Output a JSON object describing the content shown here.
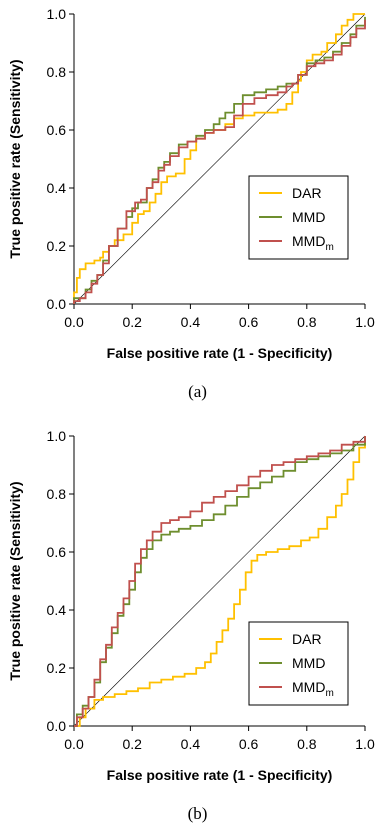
{
  "chart_data": [
    {
      "type": "line",
      "caption": "(a)",
      "xlabel": "False positive rate (1 - Specificity)",
      "ylabel": "True positive rate (Sensitivity)",
      "xlim": [
        0,
        1
      ],
      "ylim": [
        0,
        1
      ],
      "x_ticks": [
        "0.0",
        "0.2",
        "0.4",
        "0.6",
        "0.8",
        "1.0"
      ],
      "y_ticks": [
        "0.0",
        "0.2",
        "0.4",
        "0.6",
        "0.8",
        "1.0"
      ],
      "grid": false,
      "legend_position": "lower-right",
      "diagonal_reference": true,
      "series": [
        {
          "name": "DAR",
          "label_main": "DAR",
          "label_sub": "",
          "color": "#FFC000",
          "points": [
            [
              0,
              0
            ],
            [
              0,
              0.04
            ],
            [
              0.01,
              0.09
            ],
            [
              0.02,
              0.12
            ],
            [
              0.04,
              0.14
            ],
            [
              0.07,
              0.15
            ],
            [
              0.09,
              0.16
            ],
            [
              0.1,
              0.18
            ],
            [
              0.12,
              0.2
            ],
            [
              0.14,
              0.22
            ],
            [
              0.17,
              0.24
            ],
            [
              0.2,
              0.28
            ],
            [
              0.22,
              0.31
            ],
            [
              0.24,
              0.32
            ],
            [
              0.26,
              0.35
            ],
            [
              0.28,
              0.38
            ],
            [
              0.3,
              0.42
            ],
            [
              0.32,
              0.44
            ],
            [
              0.35,
              0.45
            ],
            [
              0.38,
              0.5
            ],
            [
              0.4,
              0.53
            ],
            [
              0.42,
              0.57
            ],
            [
              0.45,
              0.59
            ],
            [
              0.48,
              0.6
            ],
            [
              0.52,
              0.62
            ],
            [
              0.55,
              0.64
            ],
            [
              0.58,
              0.65
            ],
            [
              0.62,
              0.66
            ],
            [
              0.66,
              0.66
            ],
            [
              0.7,
              0.67
            ],
            [
              0.73,
              0.69
            ],
            [
              0.75,
              0.73
            ],
            [
              0.77,
              0.77
            ],
            [
              0.78,
              0.8
            ],
            [
              0.8,
              0.84
            ],
            [
              0.82,
              0.86
            ],
            [
              0.85,
              0.87
            ],
            [
              0.87,
              0.9
            ],
            [
              0.9,
              0.93
            ],
            [
              0.92,
              0.96
            ],
            [
              0.94,
              0.98
            ],
            [
              0.96,
              1.0
            ],
            [
              1,
              1.0
            ]
          ]
        },
        {
          "name": "MMD",
          "label_main": "MMD",
          "label_sub": "",
          "color": "#6E8E2E",
          "points": [
            [
              0,
              0
            ],
            [
              0,
              0.02
            ],
            [
              0.02,
              0.02
            ],
            [
              0.04,
              0.05
            ],
            [
              0.06,
              0.08
            ],
            [
              0.08,
              0.1
            ],
            [
              0.1,
              0.15
            ],
            [
              0.12,
              0.2
            ],
            [
              0.15,
              0.26
            ],
            [
              0.18,
              0.3
            ],
            [
              0.2,
              0.33
            ],
            [
              0.22,
              0.35
            ],
            [
              0.25,
              0.4
            ],
            [
              0.27,
              0.43
            ],
            [
              0.29,
              0.47
            ],
            [
              0.31,
              0.49
            ],
            [
              0.33,
              0.52
            ],
            [
              0.36,
              0.55
            ],
            [
              0.39,
              0.56
            ],
            [
              0.42,
              0.58
            ],
            [
              0.45,
              0.6
            ],
            [
              0.48,
              0.62
            ],
            [
              0.5,
              0.64
            ],
            [
              0.52,
              0.66
            ],
            [
              0.55,
              0.69
            ],
            [
              0.58,
              0.72
            ],
            [
              0.62,
              0.73
            ],
            [
              0.66,
              0.74
            ],
            [
              0.7,
              0.75
            ],
            [
              0.73,
              0.76
            ],
            [
              0.75,
              0.76
            ],
            [
              0.77,
              0.79
            ],
            [
              0.8,
              0.83
            ],
            [
              0.83,
              0.84
            ],
            [
              0.86,
              0.85
            ],
            [
              0.89,
              0.87
            ],
            [
              0.92,
              0.9
            ],
            [
              0.95,
              0.93
            ],
            [
              0.97,
              0.96
            ],
            [
              1,
              0.99
            ]
          ]
        },
        {
          "name": "MMDm",
          "label_main": "MMD",
          "label_sub": "m",
          "color": "#C0504D",
          "points": [
            [
              0,
              0
            ],
            [
              0,
              0.01
            ],
            [
              0.02,
              0.02
            ],
            [
              0.04,
              0.04
            ],
            [
              0.06,
              0.07
            ],
            [
              0.08,
              0.1
            ],
            [
              0.1,
              0.14
            ],
            [
              0.12,
              0.2
            ],
            [
              0.15,
              0.26
            ],
            [
              0.18,
              0.32
            ],
            [
              0.21,
              0.35
            ],
            [
              0.23,
              0.36
            ],
            [
              0.25,
              0.4
            ],
            [
              0.27,
              0.42
            ],
            [
              0.29,
              0.46
            ],
            [
              0.31,
              0.48
            ],
            [
              0.33,
              0.51
            ],
            [
              0.36,
              0.54
            ],
            [
              0.39,
              0.56
            ],
            [
              0.42,
              0.57
            ],
            [
              0.45,
              0.59
            ],
            [
              0.48,
              0.6
            ],
            [
              0.52,
              0.61
            ],
            [
              0.55,
              0.65
            ],
            [
              0.58,
              0.69
            ],
            [
              0.62,
              0.71
            ],
            [
              0.66,
              0.72
            ],
            [
              0.7,
              0.73
            ],
            [
              0.73,
              0.75
            ],
            [
              0.75,
              0.76
            ],
            [
              0.77,
              0.79
            ],
            [
              0.8,
              0.82
            ],
            [
              0.83,
              0.83
            ],
            [
              0.86,
              0.84
            ],
            [
              0.89,
              0.86
            ],
            [
              0.92,
              0.89
            ],
            [
              0.95,
              0.92
            ],
            [
              0.97,
              0.95
            ],
            [
              1,
              0.98
            ]
          ]
        }
      ]
    },
    {
      "type": "line",
      "caption": "(b)",
      "xlabel": "False positive rate (1 - Specificity)",
      "ylabel": "True positive rate (Sensitivity)",
      "xlim": [
        0,
        1
      ],
      "ylim": [
        0,
        1
      ],
      "x_ticks": [
        "0.0",
        "0.2",
        "0.4",
        "0.6",
        "0.8",
        "1.0"
      ],
      "y_ticks": [
        "0.0",
        "0.2",
        "0.4",
        "0.6",
        "0.8",
        "1.0"
      ],
      "grid": false,
      "legend_position": "lower-right",
      "diagonal_reference": true,
      "series": [
        {
          "name": "DAR",
          "label_main": "DAR",
          "label_sub": "",
          "color": "#FFC000",
          "points": [
            [
              0,
              0
            ],
            [
              0.02,
              0.03
            ],
            [
              0.04,
              0.06
            ],
            [
              0.07,
              0.09
            ],
            [
              0.1,
              0.1
            ],
            [
              0.14,
              0.11
            ],
            [
              0.18,
              0.12
            ],
            [
              0.22,
              0.13
            ],
            [
              0.26,
              0.15
            ],
            [
              0.3,
              0.16
            ],
            [
              0.34,
              0.17
            ],
            [
              0.38,
              0.18
            ],
            [
              0.42,
              0.2
            ],
            [
              0.45,
              0.22
            ],
            [
              0.47,
              0.25
            ],
            [
              0.49,
              0.29
            ],
            [
              0.51,
              0.33
            ],
            [
              0.53,
              0.37
            ],
            [
              0.55,
              0.42
            ],
            [
              0.57,
              0.47
            ],
            [
              0.59,
              0.53
            ],
            [
              0.61,
              0.57
            ],
            [
              0.63,
              0.59
            ],
            [
              0.66,
              0.6
            ],
            [
              0.7,
              0.61
            ],
            [
              0.74,
              0.62
            ],
            [
              0.78,
              0.64
            ],
            [
              0.81,
              0.65
            ],
            [
              0.84,
              0.68
            ],
            [
              0.87,
              0.72
            ],
            [
              0.9,
              0.76
            ],
            [
              0.92,
              0.8
            ],
            [
              0.94,
              0.85
            ],
            [
              0.96,
              0.91
            ],
            [
              0.98,
              0.96
            ],
            [
              1,
              1.0
            ]
          ]
        },
        {
          "name": "MMD",
          "label_main": "MMD",
          "label_sub": "",
          "color": "#6E8E2E",
          "points": [
            [
              0,
              0
            ],
            [
              0.01,
              0.04
            ],
            [
              0.03,
              0.07
            ],
            [
              0.05,
              0.1
            ],
            [
              0.07,
              0.15
            ],
            [
              0.09,
              0.22
            ],
            [
              0.11,
              0.27
            ],
            [
              0.13,
              0.32
            ],
            [
              0.15,
              0.38
            ],
            [
              0.17,
              0.42
            ],
            [
              0.19,
              0.47
            ],
            [
              0.21,
              0.53
            ],
            [
              0.23,
              0.58
            ],
            [
              0.25,
              0.61
            ],
            [
              0.27,
              0.64
            ],
            [
              0.3,
              0.66
            ],
            [
              0.33,
              0.67
            ],
            [
              0.36,
              0.68
            ],
            [
              0.4,
              0.69
            ],
            [
              0.44,
              0.71
            ],
            [
              0.48,
              0.73
            ],
            [
              0.52,
              0.76
            ],
            [
              0.56,
              0.79
            ],
            [
              0.6,
              0.82
            ],
            [
              0.64,
              0.84
            ],
            [
              0.68,
              0.86
            ],
            [
              0.72,
              0.88
            ],
            [
              0.76,
              0.91
            ],
            [
              0.8,
              0.92
            ],
            [
              0.84,
              0.93
            ],
            [
              0.88,
              0.94
            ],
            [
              0.92,
              0.95
            ],
            [
              0.96,
              0.97
            ],
            [
              1,
              1.0
            ]
          ]
        },
        {
          "name": "MMDm",
          "label_main": "MMD",
          "label_sub": "m",
          "color": "#C0504D",
          "points": [
            [
              0,
              0
            ],
            [
              0.01,
              0.03
            ],
            [
              0.03,
              0.06
            ],
            [
              0.05,
              0.1
            ],
            [
              0.07,
              0.16
            ],
            [
              0.09,
              0.23
            ],
            [
              0.11,
              0.28
            ],
            [
              0.13,
              0.34
            ],
            [
              0.15,
              0.39
            ],
            [
              0.17,
              0.44
            ],
            [
              0.19,
              0.5
            ],
            [
              0.21,
              0.56
            ],
            [
              0.23,
              0.61
            ],
            [
              0.25,
              0.64
            ],
            [
              0.27,
              0.67
            ],
            [
              0.3,
              0.7
            ],
            [
              0.33,
              0.71
            ],
            [
              0.36,
              0.72
            ],
            [
              0.4,
              0.74
            ],
            [
              0.44,
              0.77
            ],
            [
              0.48,
              0.79
            ],
            [
              0.52,
              0.81
            ],
            [
              0.56,
              0.83
            ],
            [
              0.6,
              0.86
            ],
            [
              0.64,
              0.88
            ],
            [
              0.68,
              0.9
            ],
            [
              0.72,
              0.91
            ],
            [
              0.76,
              0.92
            ],
            [
              0.8,
              0.93
            ],
            [
              0.84,
              0.94
            ],
            [
              0.88,
              0.95
            ],
            [
              0.92,
              0.97
            ],
            [
              0.96,
              0.98
            ],
            [
              1,
              1.0
            ]
          ]
        }
      ]
    }
  ]
}
